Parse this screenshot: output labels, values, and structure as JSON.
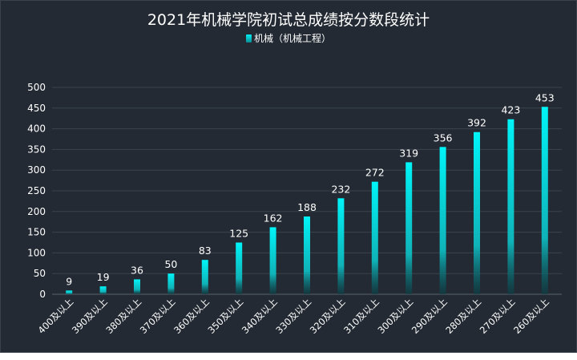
{
  "chart_data": {
    "type": "bar",
    "title": "2021年机械学院初试总成绩按分数段统计",
    "legend_position": "top-center",
    "grid": true,
    "xlabel": "",
    "ylabel": "",
    "ylim": [
      0,
      500
    ],
    "yticks": [
      0,
      50,
      100,
      150,
      200,
      250,
      300,
      350,
      400,
      450,
      500
    ],
    "categories": [
      "400及以上",
      "390及以上",
      "380及以上",
      "370及以上",
      "360及以上",
      "350及以上",
      "340及以上",
      "330及以上",
      "320及以上",
      "310及以上",
      "300及以上",
      "290及以上",
      "280及以上",
      "270及以上",
      "260及以上"
    ],
    "series": [
      {
        "name": "机械（机械工程）",
        "values": [
          9,
          19,
          36,
          50,
          83,
          125,
          162,
          188,
          232,
          272,
          319,
          356,
          392,
          423,
          453
        ]
      }
    ],
    "colors": {
      "background": "#232a33",
      "bar_top": "#00f4f8",
      "bar_bottom": "#0a5f66",
      "text": "#ffffff",
      "grid": "#3b434d"
    }
  }
}
